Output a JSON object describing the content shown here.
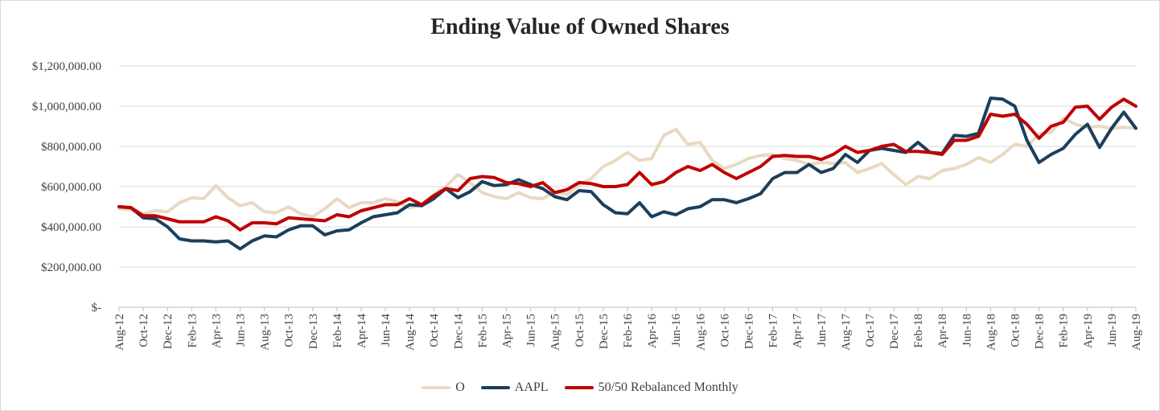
{
  "chart_data": {
    "type": "line",
    "title": "Ending Value of Owned Shares",
    "xlabel": "",
    "ylabel": "",
    "ylim": [
      0,
      1200000
    ],
    "yticks": [
      {
        "value": 0,
        "label": "$-"
      },
      {
        "value": 200000,
        "label": "$200,000.00"
      },
      {
        "value": 400000,
        "label": "$400,000.00"
      },
      {
        "value": 600000,
        "label": "$600,000.00"
      },
      {
        "value": 800000,
        "label": "$800,000.00"
      },
      {
        "value": 1000000,
        "label": "$1,000,000.00"
      },
      {
        "value": 1200000,
        "label": "$1,200,000.00"
      }
    ],
    "grid": true,
    "legend_position": "bottom",
    "x_tick_labels": [
      "Aug-12",
      "Oct-12",
      "Dec-12",
      "Feb-13",
      "Apr-13",
      "Jun-13",
      "Aug-13",
      "Oct-13",
      "Dec-13",
      "Feb-14",
      "Apr-14",
      "Jun-14",
      "Aug-14",
      "Oct-14",
      "Dec-14",
      "Feb-15",
      "Apr-15",
      "Jun-15",
      "Aug-15",
      "Oct-15",
      "Dec-15",
      "Feb-16",
      "Apr-16",
      "Jun-16",
      "Aug-16",
      "Oct-16",
      "Dec-16",
      "Feb-17",
      "Apr-17",
      "Jun-17",
      "Aug-17",
      "Oct-17",
      "Dec-17",
      "Feb-18",
      "Apr-18",
      "Jun-18",
      "Aug-18",
      "Oct-18",
      "Dec-18",
      "Feb-19",
      "Apr-19",
      "Jun-19",
      "Aug-19"
    ],
    "series": [
      {
        "name": "O",
        "color": "#e8d9c1",
        "values": [
          490000,
          485000,
          465000,
          480000,
          475000,
          520000,
          545000,
          540000,
          605000,
          545000,
          505000,
          520000,
          475000,
          470000,
          500000,
          465000,
          450000,
          490000,
          540000,
          495000,
          520000,
          520000,
          540000,
          525000,
          495000,
          510000,
          560000,
          600000,
          660000,
          620000,
          570000,
          550000,
          540000,
          570000,
          545000,
          540000,
          575000,
          560000,
          610000,
          640000,
          700000,
          730000,
          770000,
          730000,
          740000,
          855000,
          885000,
          810000,
          820000,
          730000,
          690000,
          710000,
          740000,
          755000,
          760000,
          740000,
          730000,
          710000,
          720000,
          715000,
          720000,
          670000,
          690000,
          715000,
          660000,
          610000,
          650000,
          640000,
          680000,
          690000,
          710000,
          745000,
          720000,
          760000,
          810000,
          800000,
          860000,
          870000,
          940000,
          910000,
          895000,
          900000,
          890000,
          895000,
          890000
        ]
      },
      {
        "name": "AAPL",
        "color": "#1b3f5c",
        "values": [
          500000,
          495000,
          445000,
          440000,
          400000,
          340000,
          330000,
          330000,
          325000,
          330000,
          290000,
          330000,
          355000,
          350000,
          385000,
          405000,
          405000,
          360000,
          380000,
          385000,
          420000,
          450000,
          460000,
          470000,
          510000,
          505000,
          540000,
          590000,
          545000,
          575000,
          625000,
          605000,
          610000,
          635000,
          610000,
          590000,
          550000,
          535000,
          580000,
          575000,
          510000,
          470000,
          465000,
          520000,
          450000,
          475000,
          460000,
          490000,
          500000,
          535000,
          535000,
          520000,
          540000,
          565000,
          640000,
          670000,
          670000,
          710000,
          670000,
          690000,
          760000,
          720000,
          780000,
          790000,
          780000,
          770000,
          820000,
          770000,
          765000,
          855000,
          850000,
          865000,
          1040000,
          1035000,
          1000000,
          830000,
          720000,
          760000,
          790000,
          860000,
          910000,
          795000,
          890000,
          970000,
          890000
        ]
      },
      {
        "name": "50/50 Rebalanced Monthly",
        "color": "#c00000",
        "values": [
          500000,
          495000,
          455000,
          455000,
          440000,
          425000,
          425000,
          425000,
          450000,
          430000,
          385000,
          420000,
          420000,
          415000,
          445000,
          440000,
          435000,
          430000,
          460000,
          450000,
          480000,
          495000,
          510000,
          510000,
          540000,
          510000,
          555000,
          590000,
          580000,
          640000,
          650000,
          645000,
          620000,
          615000,
          600000,
          620000,
          570000,
          585000,
          620000,
          615000,
          600000,
          600000,
          610000,
          670000,
          610000,
          625000,
          670000,
          700000,
          680000,
          710000,
          670000,
          640000,
          670000,
          700000,
          750000,
          755000,
          750000,
          750000,
          735000,
          760000,
          800000,
          770000,
          780000,
          800000,
          810000,
          775000,
          775000,
          770000,
          760000,
          830000,
          830000,
          850000,
          960000,
          950000,
          960000,
          910000,
          840000,
          900000,
          920000,
          995000,
          1000000,
          935000,
          995000,
          1035000,
          1000000
        ]
      }
    ]
  }
}
